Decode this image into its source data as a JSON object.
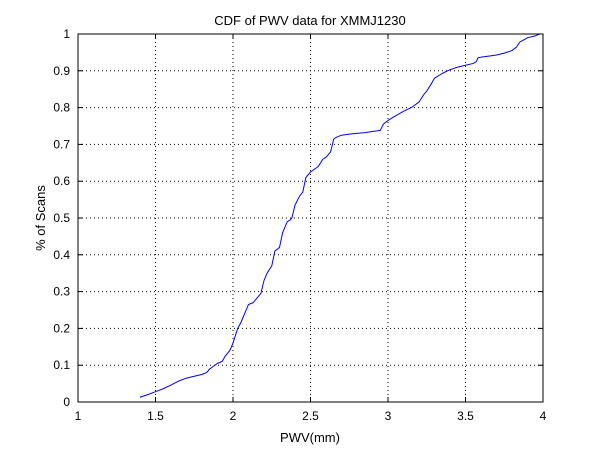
{
  "chart_data": {
    "type": "line",
    "title": "CDF of PWV data for XMMJ1230",
    "xlabel": "PWV(mm)",
    "ylabel": "% of Scans",
    "xlim": [
      1,
      4
    ],
    "ylim": [
      0,
      1
    ],
    "xticks": [
      1,
      1.5,
      2,
      2.5,
      3,
      3.5,
      4
    ],
    "xtick_labels": [
      "1",
      "1.5",
      "2",
      "2.5",
      "3",
      "3.5",
      "4"
    ],
    "yticks": [
      0,
      0.1,
      0.2,
      0.3,
      0.4,
      0.5,
      0.6,
      0.7,
      0.8,
      0.9,
      1
    ],
    "ytick_labels": [
      "0",
      "0.1",
      "0.2",
      "0.3",
      "0.4",
      "0.5",
      "0.6",
      "0.7",
      "0.8",
      "0.9",
      "1"
    ],
    "grid": true,
    "grid_style": "dotted",
    "series": [
      {
        "color": "#0000ff",
        "x": [
          1.4,
          1.45,
          1.5,
          1.55,
          1.6,
          1.65,
          1.7,
          1.75,
          1.8,
          1.83,
          1.85,
          1.9,
          1.93,
          1.95,
          1.98,
          2.0,
          2.03,
          2.05,
          2.08,
          2.1,
          2.13,
          2.15,
          2.18,
          2.2,
          2.22,
          2.25,
          2.27,
          2.3,
          2.32,
          2.35,
          2.37,
          2.38,
          2.4,
          2.43,
          2.45,
          2.47,
          2.5,
          2.55,
          2.58,
          2.6,
          2.63,
          2.65,
          2.67,
          2.7,
          2.75,
          2.8,
          2.85,
          2.9,
          2.95,
          2.97,
          3.0,
          3.05,
          3.1,
          3.15,
          3.2,
          3.23,
          3.25,
          3.28,
          3.3,
          3.35,
          3.4,
          3.45,
          3.5,
          3.55,
          3.57,
          3.58,
          3.6,
          3.65,
          3.7,
          3.75,
          3.8,
          3.83,
          3.85,
          3.88,
          3.9,
          3.95,
          3.98
        ],
        "y": [
          0.013,
          0.02,
          0.028,
          0.036,
          0.046,
          0.057,
          0.065,
          0.07,
          0.075,
          0.08,
          0.09,
          0.105,
          0.11,
          0.125,
          0.14,
          0.16,
          0.2,
          0.215,
          0.245,
          0.265,
          0.27,
          0.28,
          0.295,
          0.33,
          0.35,
          0.37,
          0.41,
          0.42,
          0.46,
          0.49,
          0.495,
          0.5,
          0.535,
          0.56,
          0.57,
          0.61,
          0.625,
          0.64,
          0.66,
          0.665,
          0.68,
          0.715,
          0.72,
          0.725,
          0.728,
          0.73,
          0.732,
          0.735,
          0.738,
          0.755,
          0.765,
          0.778,
          0.79,
          0.8,
          0.815,
          0.835,
          0.845,
          0.865,
          0.88,
          0.893,
          0.903,
          0.91,
          0.915,
          0.92,
          0.925,
          0.935,
          0.937,
          0.94,
          0.943,
          0.948,
          0.955,
          0.965,
          0.978,
          0.985,
          0.99,
          0.995,
          1.0
        ]
      }
    ]
  }
}
